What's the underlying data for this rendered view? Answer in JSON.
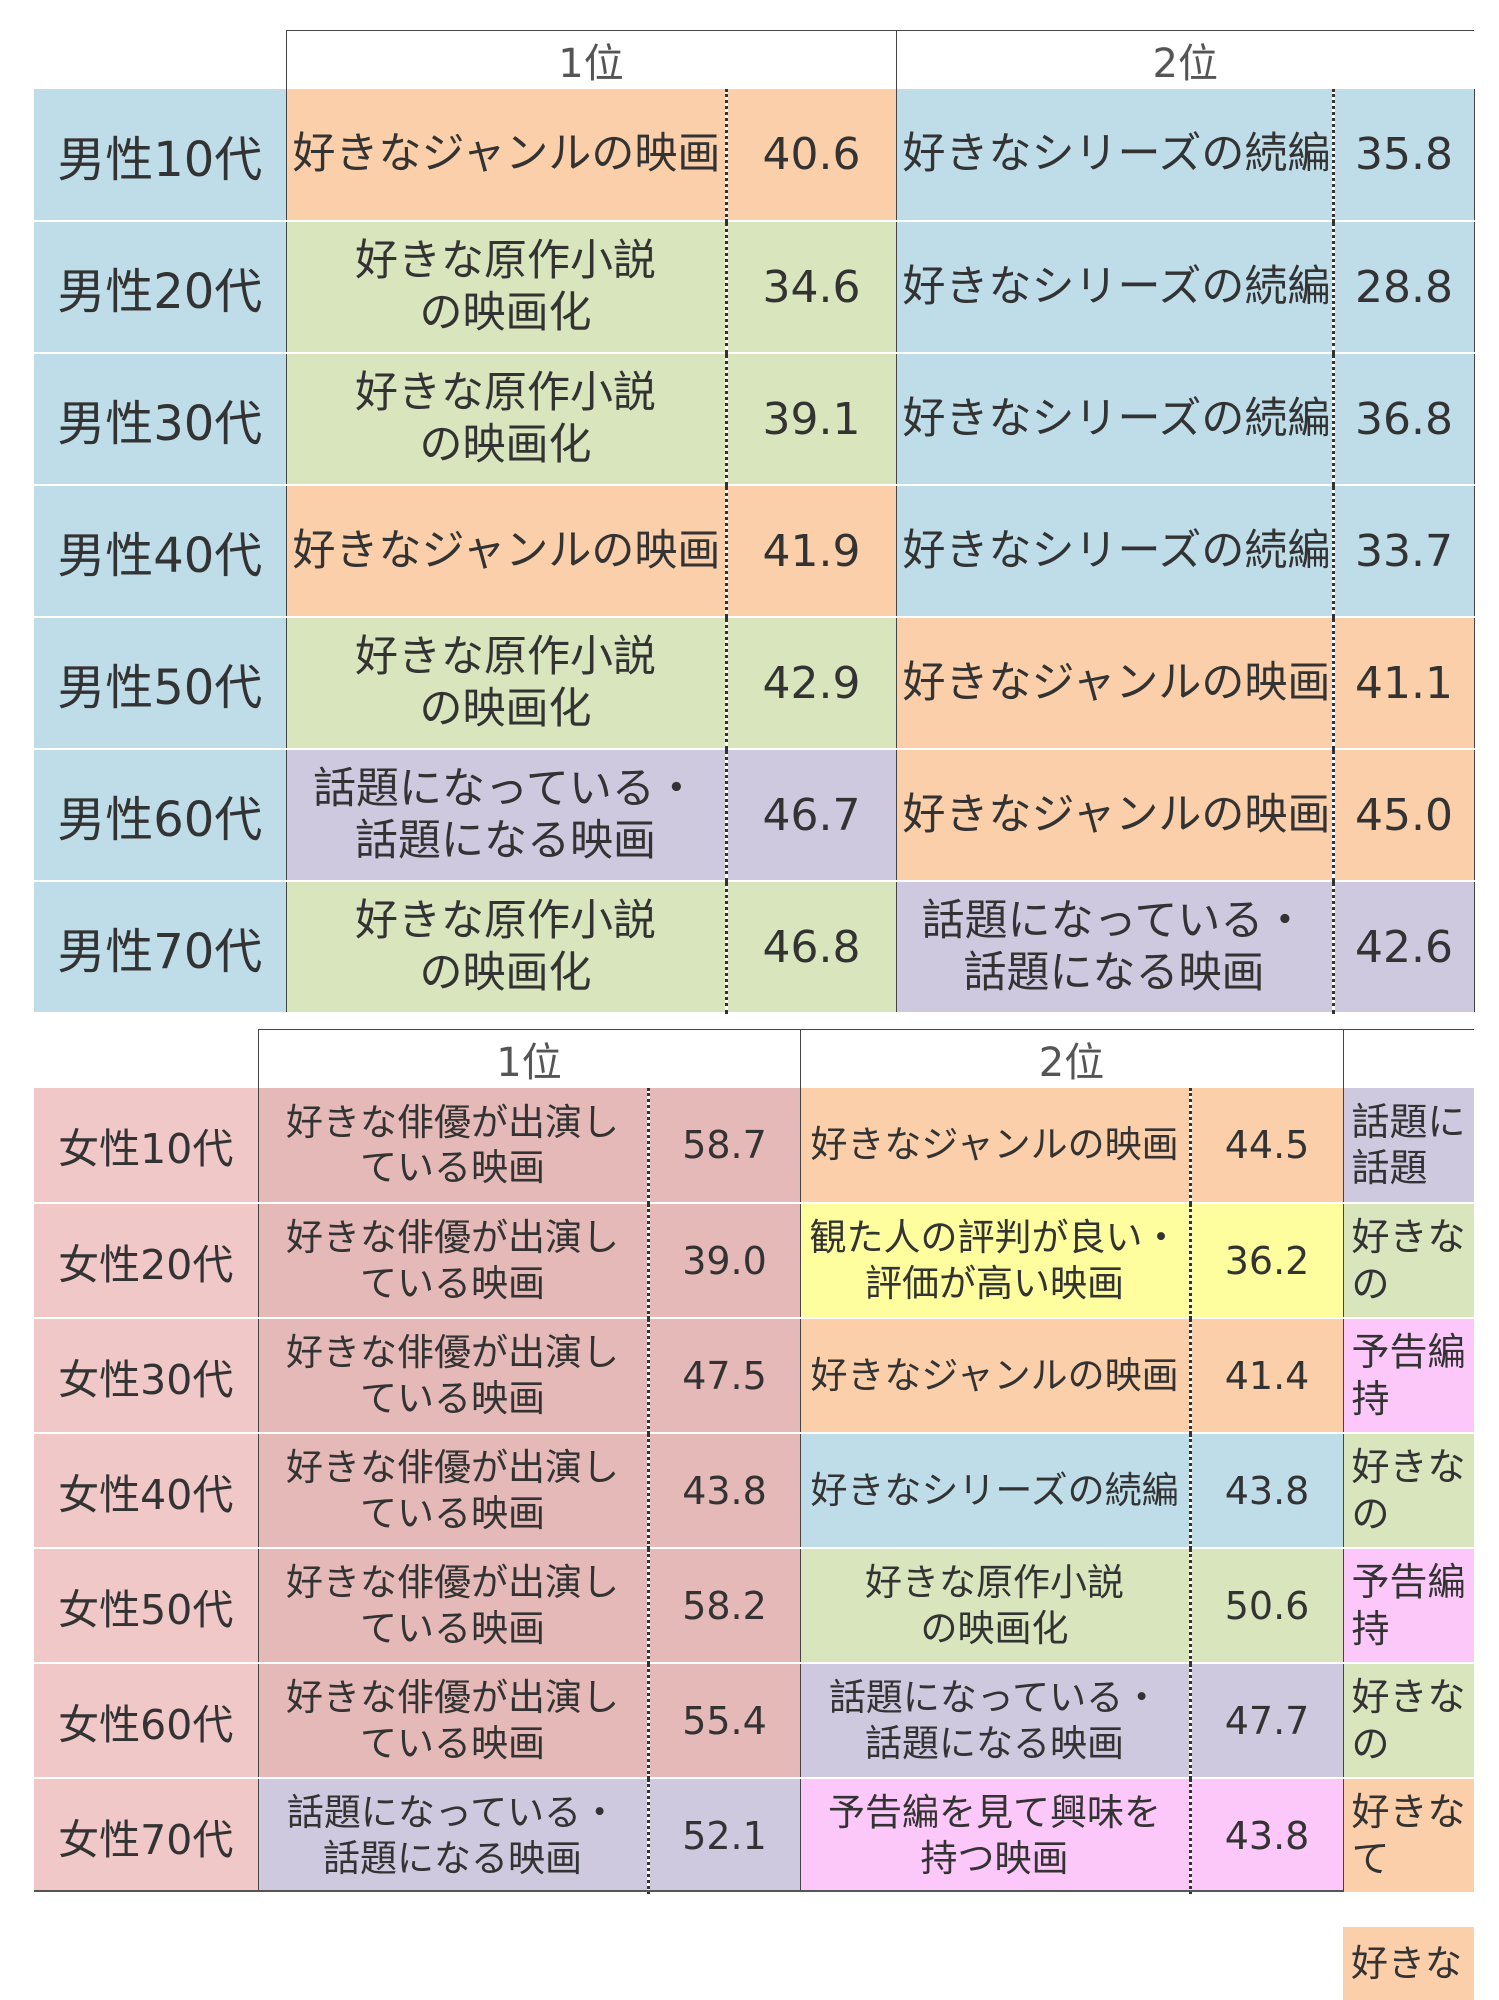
{
  "colors": {
    "blue": "#bfdde8",
    "orange": "#fbcfa9",
    "green": "#d8e5bd",
    "purple": "#cfc9e0",
    "red": "#e4b9b7",
    "yellow": "#fefe9e",
    "pink": "#fcc7f9",
    "male_label": "#bfdde8",
    "female_label": "#efc8c7"
  },
  "chart_data": [
    {
      "type": "table",
      "headers": [
        "",
        "1位",
        "2位"
      ],
      "rows": [
        {
          "label": "男性10代",
          "r1": "好きなジャンルの映画",
          "v1": "40.6",
          "c1": "orange",
          "r2": "好きなシリーズの続編",
          "v2": "35.8",
          "c2": "blue"
        },
        {
          "label": "男性20代",
          "r1": "好きな原作小説\nの映画化",
          "v1": "34.6",
          "c1": "green",
          "r2": "好きなシリーズの続編",
          "v2": "28.8",
          "c2": "blue"
        },
        {
          "label": "男性30代",
          "r1": "好きな原作小説\nの映画化",
          "v1": "39.1",
          "c1": "green",
          "r2": "好きなシリーズの続編",
          "v2": "36.8",
          "c2": "blue"
        },
        {
          "label": "男性40代",
          "r1": "好きなジャンルの映画",
          "v1": "41.9",
          "c1": "orange",
          "r2": "好きなシリーズの続編",
          "v2": "33.7",
          "c2": "blue"
        },
        {
          "label": "男性50代",
          "r1": "好きな原作小説\nの映画化",
          "v1": "42.9",
          "c1": "green",
          "r2": "好きなジャンルの映画",
          "v2": "41.1",
          "c2": "orange"
        },
        {
          "label": "男性60代",
          "r1": "話題になっている・\n話題になる映画",
          "v1": "46.7",
          "c1": "purple",
          "r2": "好きなジャンルの映画",
          "v2": "45.0",
          "c2": "orange"
        },
        {
          "label": "男性70代",
          "r1": "好きな原作小説\nの映画化",
          "v1": "46.8",
          "c1": "green",
          "r2": "話題になっている・\n話題になる映画",
          "v2": "42.6",
          "c2": "purple"
        }
      ]
    },
    {
      "type": "table",
      "headers": [
        "",
        "1位",
        "2位",
        ""
      ],
      "rows": [
        {
          "label": "女性10代",
          "r1": "好きな俳優が出演し\nている映画",
          "v1": "58.7",
          "c1": "red",
          "r2": "好きなジャンルの映画",
          "v2": "44.5",
          "c2": "orange",
          "r3": "話題に\n話題",
          "c3": "purple"
        },
        {
          "label": "女性20代",
          "r1": "好きな俳優が出演し\nている映画",
          "v1": "39.0",
          "c1": "red",
          "r2": "観た人の評判が良い・\n評価が高い映画",
          "v2": "36.2",
          "c2": "yellow",
          "r3": "好きな\nの",
          "c3": "green"
        },
        {
          "label": "女性30代",
          "r1": "好きな俳優が出演し\nている映画",
          "v1": "47.5",
          "c1": "red",
          "r2": "好きなジャンルの映画",
          "v2": "41.4",
          "c2": "orange",
          "r3": "予告編\n持",
          "c3": "pink"
        },
        {
          "label": "女性40代",
          "r1": "好きな俳優が出演し\nている映画",
          "v1": "43.8",
          "c1": "red",
          "r2": "好きなシリーズの続編",
          "v2": "43.8",
          "c2": "blue",
          "r3": "好きな\nの",
          "c3": "green"
        },
        {
          "label": "女性50代",
          "r1": "好きな俳優が出演し\nている映画",
          "v1": "58.2",
          "c1": "red",
          "r2": "好きな原作小説\nの映画化",
          "v2": "50.6",
          "c2": "green",
          "r3": "予告編\n持",
          "c3": "pink"
        },
        {
          "label": "女性60代",
          "r1": "好きな俳優が出演し\nている映画",
          "v1": "55.4",
          "c1": "red",
          "r2": "話題になっている・\n話題になる映画",
          "v2": "47.7",
          "c2": "purple",
          "r3": "好きな\nの",
          "c3": "green"
        },
        {
          "label": "女性70代",
          "r1": "話題になっている・\n話題になる映画",
          "v1": "52.1",
          "c1": "purple",
          "r2": "予告編を見て興味を\n持つ映画",
          "v2": "43.8",
          "c2": "pink",
          "r3": "好きな\nて",
          "c3": "orange"
        }
      ],
      "extra_cell": {
        "text": "好きな",
        "c": "orange"
      }
    }
  ]
}
